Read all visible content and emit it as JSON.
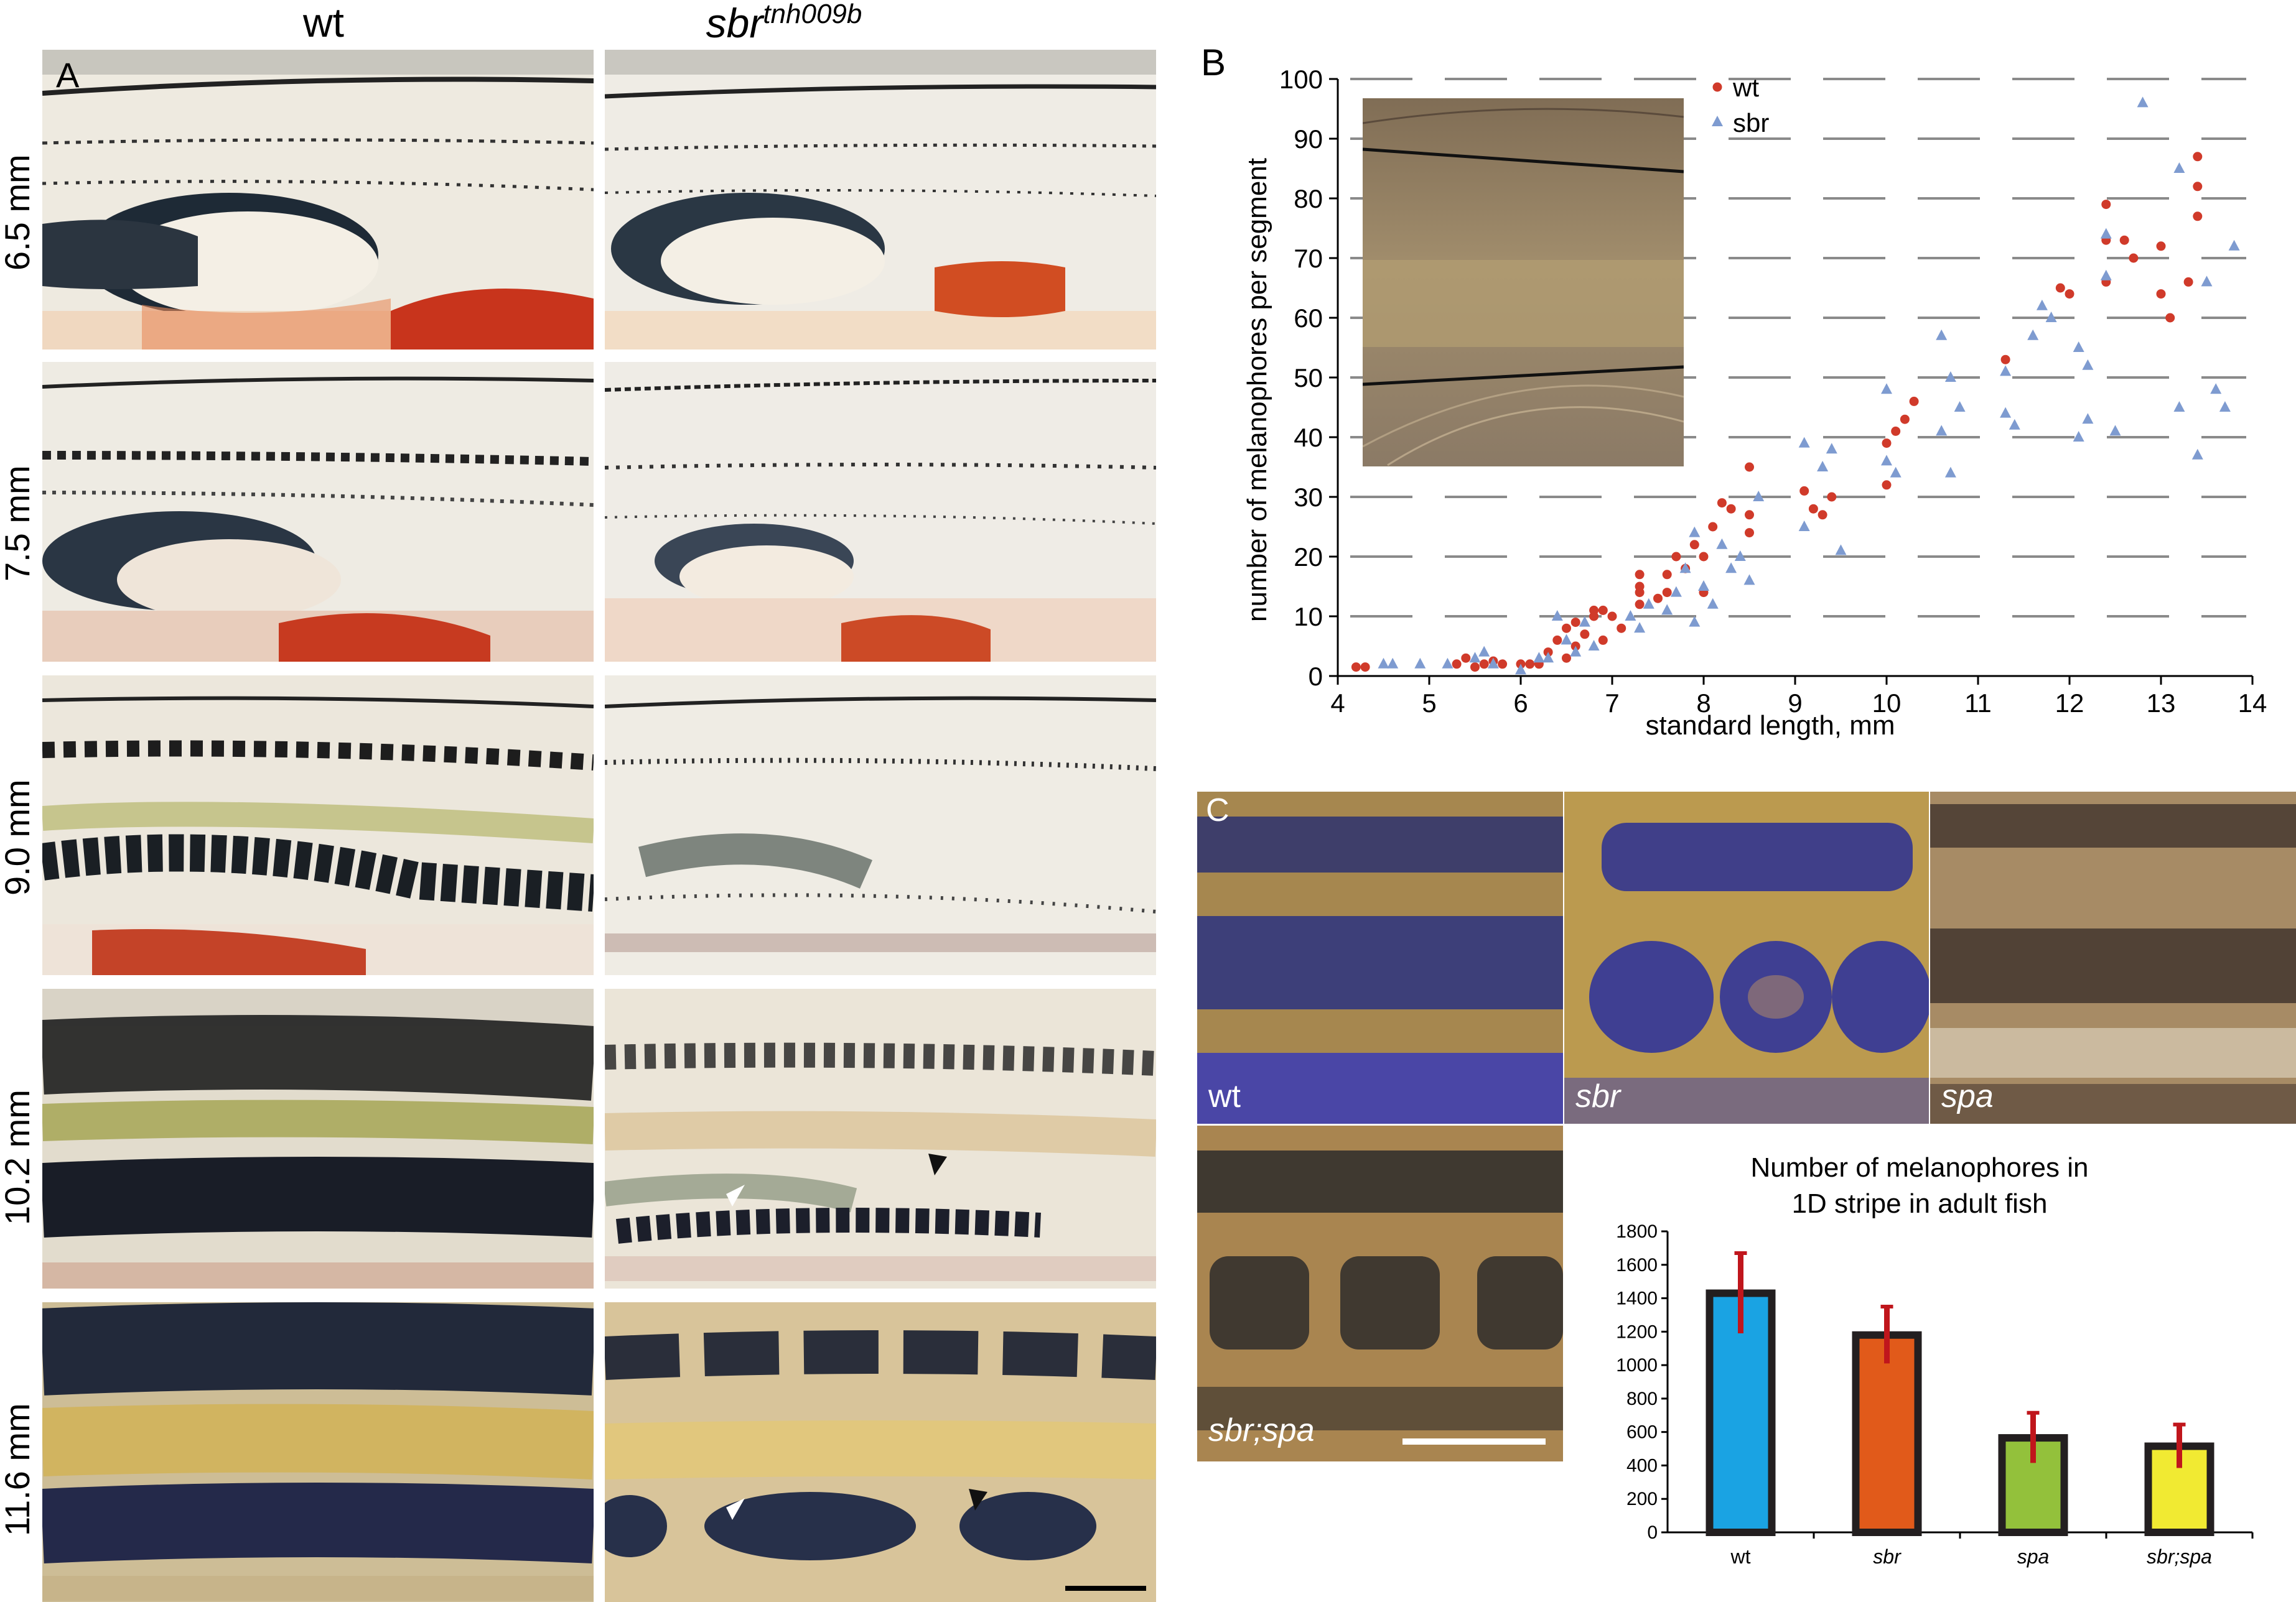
{
  "panelA": {
    "letter": "A",
    "col_wt": "wt",
    "col_mut_base": "sbr",
    "col_mut_sup": "tnh009b",
    "rows": [
      "6.5 mm",
      "7.5 mm",
      "9.0 mm",
      "10.2 mm",
      "11.6 mm"
    ]
  },
  "panelB": {
    "letter": "B"
  },
  "panelC": {
    "letter": "C",
    "photos": [
      "wt",
      "sbr",
      "spa",
      "sbr;spa"
    ]
  },
  "colors": {
    "wt_red": "#d03a2a",
    "sbr_blue": "#7e9bd0",
    "bar_wt": "#1aa3e3",
    "bar_sbr": "#e15a1a",
    "bar_spa": "#93c13b",
    "bar_sbrspa": "#f1ea32",
    "err": "#c0161c"
  },
  "chart_data": [
    {
      "type": "scatter",
      "ylabel": "number of melanophores per segment",
      "xlabel": "standard length, mm",
      "xlim": [
        4,
        14
      ],
      "ylim": [
        0,
        100
      ],
      "xticks": [
        4,
        5,
        6,
        7,
        8,
        9,
        10,
        11,
        12,
        13,
        14
      ],
      "yticks": [
        0,
        10,
        20,
        30,
        40,
        50,
        60,
        70,
        80,
        90,
        100
      ],
      "grid": "horizontal",
      "legend_position": "top-right",
      "series": [
        {
          "name": "wt",
          "marker": "circle",
          "points": [
            [
              4.2,
              1.5
            ],
            [
              4.3,
              1.5
            ],
            [
              5.3,
              2
            ],
            [
              5.4,
              3
            ],
            [
              5.5,
              1.5
            ],
            [
              5.6,
              2
            ],
            [
              5.7,
              2.5
            ],
            [
              5.8,
              2
            ],
            [
              6.0,
              2
            ],
            [
              6.1,
              2
            ],
            [
              6.2,
              2
            ],
            [
              6.3,
              4
            ],
            [
              6.4,
              6
            ],
            [
              6.5,
              8
            ],
            [
              6.5,
              3
            ],
            [
              6.6,
              5
            ],
            [
              6.6,
              9
            ],
            [
              6.7,
              7
            ],
            [
              6.8,
              11
            ],
            [
              6.8,
              10
            ],
            [
              6.9,
              6
            ],
            [
              6.9,
              11
            ],
            [
              7.0,
              10
            ],
            [
              7.1,
              8
            ],
            [
              7.3,
              12
            ],
            [
              7.3,
              14
            ],
            [
              7.3,
              15
            ],
            [
              7.3,
              17
            ],
            [
              7.5,
              13
            ],
            [
              7.6,
              17
            ],
            [
              7.6,
              14
            ],
            [
              7.7,
              20
            ],
            [
              7.8,
              18
            ],
            [
              7.9,
              22
            ],
            [
              8.0,
              14
            ],
            [
              8.0,
              20
            ],
            [
              8.1,
              25
            ],
            [
              8.2,
              29
            ],
            [
              8.3,
              28
            ],
            [
              8.5,
              27
            ],
            [
              8.5,
              35
            ],
            [
              8.5,
              24
            ],
            [
              9.1,
              31
            ],
            [
              9.2,
              28
            ],
            [
              9.3,
              27
            ],
            [
              9.4,
              30
            ],
            [
              10.0,
              39
            ],
            [
              10.0,
              32
            ],
            [
              10.1,
              41
            ],
            [
              10.2,
              43
            ],
            [
              10.3,
              46
            ],
            [
              11.3,
              53
            ],
            [
              11.9,
              65
            ],
            [
              12.0,
              64
            ],
            [
              12.4,
              73
            ],
            [
              12.4,
              79
            ],
            [
              12.4,
              66
            ],
            [
              12.6,
              73
            ],
            [
              12.7,
              70
            ],
            [
              13.0,
              72
            ],
            [
              13.0,
              64
            ],
            [
              13.1,
              60
            ],
            [
              13.3,
              66
            ],
            [
              13.4,
              87
            ],
            [
              13.4,
              82
            ],
            [
              13.4,
              77
            ]
          ]
        },
        {
          "name": "sbr",
          "marker": "triangle",
          "points": [
            [
              4.5,
              2
            ],
            [
              4.6,
              2
            ],
            [
              4.9,
              2
            ],
            [
              5.2,
              2
            ],
            [
              5.5,
              3
            ],
            [
              5.6,
              4
            ],
            [
              5.7,
              2
            ],
            [
              6.0,
              1
            ],
            [
              6.2,
              3
            ],
            [
              6.3,
              3
            ],
            [
              6.4,
              10
            ],
            [
              6.5,
              6
            ],
            [
              6.6,
              4
            ],
            [
              6.7,
              9
            ],
            [
              6.8,
              5
            ],
            [
              7.2,
              10
            ],
            [
              7.3,
              8
            ],
            [
              7.4,
              12
            ],
            [
              7.6,
              11
            ],
            [
              7.7,
              14
            ],
            [
              7.8,
              18
            ],
            [
              7.9,
              24
            ],
            [
              7.9,
              9
            ],
            [
              8.0,
              15
            ],
            [
              8.1,
              12
            ],
            [
              8.2,
              22
            ],
            [
              8.3,
              18
            ],
            [
              8.4,
              20
            ],
            [
              8.5,
              16
            ],
            [
              8.6,
              30
            ],
            [
              9.1,
              25
            ],
            [
              9.1,
              39
            ],
            [
              9.3,
              35
            ],
            [
              9.4,
              38
            ],
            [
              9.5,
              21
            ],
            [
              10.0,
              48
            ],
            [
              10.0,
              36
            ],
            [
              10.1,
              34
            ],
            [
              10.6,
              57
            ],
            [
              10.6,
              41
            ],
            [
              10.7,
              50
            ],
            [
              10.7,
              34
            ],
            [
              10.8,
              45
            ],
            [
              11.3,
              51
            ],
            [
              11.3,
              44
            ],
            [
              11.4,
              42
            ],
            [
              11.6,
              57
            ],
            [
              11.7,
              62
            ],
            [
              11.8,
              60
            ],
            [
              12.1,
              40
            ],
            [
              12.1,
              55
            ],
            [
              12.2,
              52
            ],
            [
              12.2,
              43
            ],
            [
              12.4,
              67
            ],
            [
              12.4,
              74
            ],
            [
              12.5,
              41
            ],
            [
              12.8,
              96
            ],
            [
              13.2,
              45
            ],
            [
              13.2,
              85
            ],
            [
              13.4,
              37
            ],
            [
              13.5,
              66
            ],
            [
              13.6,
              48
            ],
            [
              13.7,
              45
            ],
            [
              13.8,
              72
            ]
          ]
        }
      ]
    },
    {
      "type": "bar",
      "title_line1": "Number of melanophores in",
      "title_line2": "1D stripe in adult fish",
      "categories": [
        "wt",
        "sbr",
        "spa",
        "sbr;spa"
      ],
      "values": [
        1430,
        1180,
        565,
        515
      ],
      "errors": [
        240,
        170,
        150,
        130
      ],
      "ylim": [
        0,
        1800
      ],
      "yticks": [
        "0",
        "200",
        "400",
        "600",
        "800",
        "1000",
        "1200",
        "1400",
        "1600",
        "1800"
      ]
    }
  ]
}
